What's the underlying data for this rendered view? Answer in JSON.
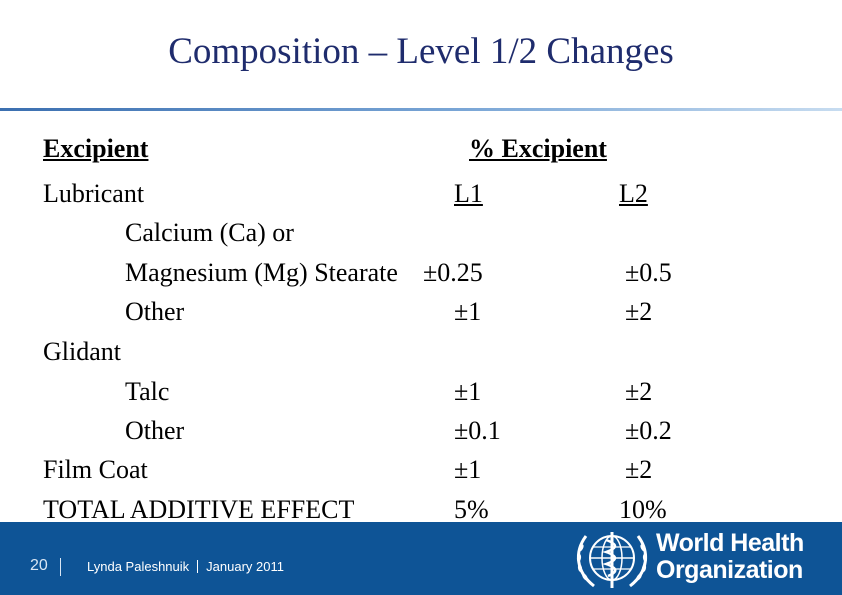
{
  "title": "Composition – Level 1/2 Changes",
  "header": {
    "excipient": "Excipient",
    "percent_excipient": "% Excipient"
  },
  "columns": {
    "l1": "L1",
    "l2": "L2"
  },
  "rows": {
    "lubricant": "Lubricant",
    "calcium": "Calcium (Ca) or",
    "magnesium": {
      "label": "Magnesium (Mg) Stearate",
      "l1": "±0.25",
      "l2": "±0.5"
    },
    "lub_other": {
      "label": "Other",
      "l1": "±1",
      "l2": "±2"
    },
    "glidant": "Glidant",
    "talc": {
      "label": "Talc",
      "l1": "±1",
      "l2": "±2"
    },
    "glid_other": {
      "label": "Other",
      "l1": "±0.1",
      "l2": "±0.2"
    },
    "film_coat": {
      "label": "Film Coat",
      "l1": "±1",
      "l2": "±2"
    },
    "total": {
      "label": "TOTAL ADDITIVE EFFECT",
      "l1": "5%",
      "l2": "10%"
    }
  },
  "footer": {
    "page_number": "20",
    "author": "Lynda Paleshnuik",
    "date": "January 2011",
    "org_line1": "World Health",
    "org_line2": "Organization",
    "emblem": "who-emblem-icon"
  },
  "colors": {
    "title": "#1f2c6d",
    "footer_bg": "#0e5496",
    "rule": "#3b6fb0"
  }
}
